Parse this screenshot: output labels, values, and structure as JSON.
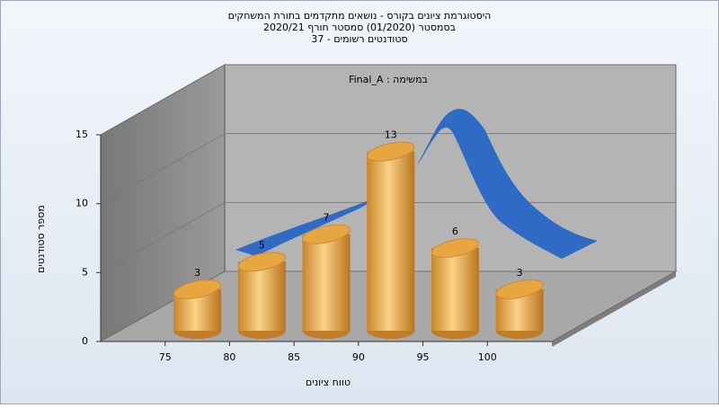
{
  "chart_data": {
    "type": "histogram",
    "title": [
      "היסטוגרמת ציונים בקורס - נושאים מתקדמים בתורת המשחקים",
      "בסמסטר  (01/2020)  סמסטר חורף 2020/21",
      "סטודנטים רשומים - 37"
    ],
    "annotation": "במשימה : Final_A",
    "xlabel": "טווח ציונים",
    "ylabel": "מספר סטודנטים",
    "bins": [
      75,
      80,
      85,
      90,
      95,
      100,
      105
    ],
    "values": [
      3,
      5,
      7,
      13,
      6,
      3
    ],
    "color": "#e8a640",
    "xlim": [
      70,
      105
    ],
    "xticks": [
      75,
      80,
      85,
      90,
      95,
      100
    ],
    "ylim": [
      0,
      15
    ],
    "yticks": [
      0,
      5,
      10,
      15
    ],
    "grid": true
  }
}
